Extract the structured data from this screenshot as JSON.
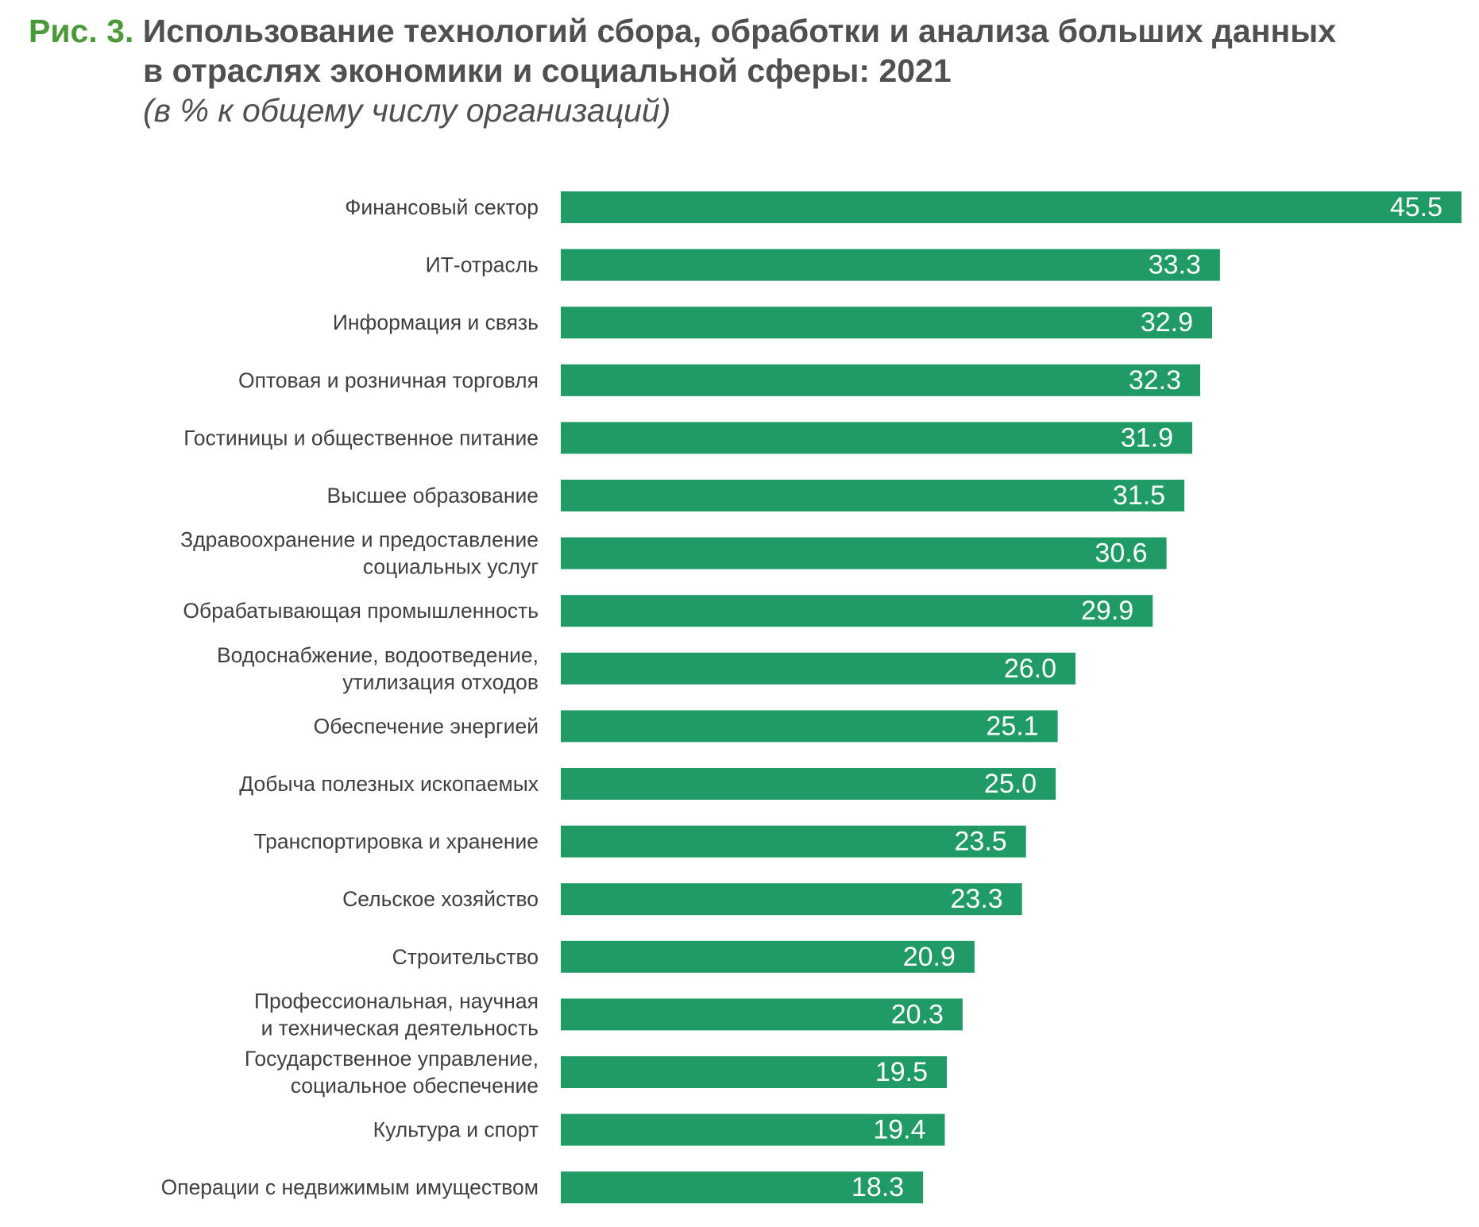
{
  "figure": {
    "label": "Рис. 3.",
    "title_line1": "Использование технологий сбора, обработки и анализа больших данных",
    "title_line2": "в отраслях экономики и социальной сферы: 2021",
    "subtitle": "(в % к общему числу организаций)"
  },
  "colors": {
    "bar": "#219b66",
    "label_text": "#404040",
    "value_text": "#ffffff",
    "figure_label": "#4a9a3a"
  },
  "chart_data": {
    "type": "bar",
    "orientation": "horizontal",
    "title": "Использование технологий сбора, обработки и анализа больших данных в отраслях экономики и социальной сферы: 2021",
    "subtitle": "(в % к общему числу организаций)",
    "xlabel": "",
    "ylabel": "",
    "xlim": [
      0,
      45.5
    ],
    "grid": false,
    "categories": [
      [
        "Финансовый сектор"
      ],
      [
        "ИТ-отрасль"
      ],
      [
        "Информация и связь"
      ],
      [
        "Оптовая и розничная торговля"
      ],
      [
        "Гостиницы и общественное питание"
      ],
      [
        "Высшее образование"
      ],
      [
        "Здравоохранение и предоставление",
        "социальных услуг"
      ],
      [
        "Обрабатывающая промышленность"
      ],
      [
        "Водоснабжение, водоотведение,",
        "утилизация отходов"
      ],
      [
        "Обеспечение энергией"
      ],
      [
        "Добыча полезных ископаемых"
      ],
      [
        "Транспортировка и хранение"
      ],
      [
        "Сельское хозяйство"
      ],
      [
        "Строительство"
      ],
      [
        "Профессиональная, научная",
        "и техническая деятельность"
      ],
      [
        "Государственное управление,",
        "социальное обеспечение"
      ],
      [
        "Культура и спорт"
      ],
      [
        "Операции с недвижимым имуществом"
      ]
    ],
    "values": [
      45.5,
      33.3,
      32.9,
      32.3,
      31.9,
      31.5,
      30.6,
      29.9,
      26.0,
      25.1,
      25.0,
      23.5,
      23.3,
      20.9,
      20.3,
      19.5,
      19.4,
      18.3
    ],
    "value_labels": [
      "45.5",
      "33.3",
      "32.9",
      "32.3",
      "31.9",
      "31.5",
      "30.6",
      "29.9",
      "26.0",
      "25.1",
      "25.0",
      "23.5",
      "23.3",
      "20.9",
      "20.3",
      "19.5",
      "19.4",
      "18.3"
    ]
  }
}
